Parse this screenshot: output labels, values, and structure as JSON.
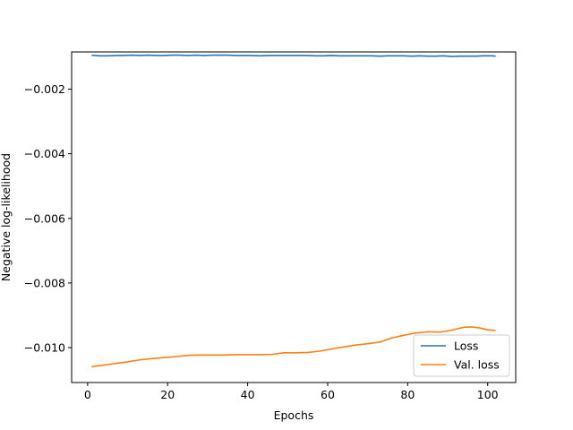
{
  "chart_data": {
    "type": "line",
    "title": "",
    "xlabel": "Epochs",
    "ylabel": "Negative log-likelihood",
    "xlim": [
      -4,
      107
    ],
    "ylim": [
      -0.01108,
      -0.00085
    ],
    "xticks": [
      0,
      20,
      40,
      60,
      80,
      100
    ],
    "xtick_labels": [
      "0",
      "20",
      "40",
      "60",
      "80",
      "100"
    ],
    "yticks": [
      -0.01,
      -0.008,
      -0.006,
      -0.004,
      -0.002
    ],
    "ytick_labels": [
      "−0.010",
      "−0.008",
      "−0.006",
      "−0.004",
      "−0.002"
    ],
    "grid": false,
    "legend_position": "lower-right",
    "series": [
      {
        "name": "Loss",
        "color": "#1f77b4",
        "x": [
          1,
          3,
          5,
          7,
          9,
          11,
          13,
          15,
          17,
          19,
          21,
          23,
          25,
          27,
          29,
          31,
          33,
          35,
          37,
          39,
          41,
          43,
          45,
          47,
          49,
          51,
          53,
          55,
          57,
          59,
          61,
          63,
          65,
          67,
          69,
          71,
          73,
          75,
          77,
          79,
          81,
          83,
          85,
          87,
          89,
          91,
          93,
          95,
          97,
          99,
          101,
          102
        ],
        "y": [
          -0.00095,
          -0.00097,
          -0.00097,
          -0.00096,
          -0.00096,
          -0.00095,
          -0.00096,
          -0.00095,
          -0.00096,
          -0.00096,
          -0.00095,
          -0.00095,
          -0.00096,
          -0.00095,
          -0.00096,
          -0.00095,
          -0.00095,
          -0.00095,
          -0.00096,
          -0.00096,
          -0.00096,
          -0.00097,
          -0.00096,
          -0.00096,
          -0.00096,
          -0.00096,
          -0.00096,
          -0.00096,
          -0.00097,
          -0.00097,
          -0.00096,
          -0.00097,
          -0.00097,
          -0.00097,
          -0.00097,
          -0.00097,
          -0.00098,
          -0.00097,
          -0.00097,
          -0.00097,
          -0.00098,
          -0.00097,
          -0.00098,
          -0.00098,
          -0.00097,
          -0.00099,
          -0.00098,
          -0.00098,
          -0.00098,
          -0.00097,
          -0.00097,
          -0.00098
        ]
      },
      {
        "name": "Val. loss",
        "color": "#ff7f0e",
        "x": [
          1,
          4,
          7,
          10,
          13,
          16,
          19,
          22,
          25,
          28,
          31,
          34,
          37,
          40,
          43,
          46,
          49,
          52,
          55,
          58,
          61,
          64,
          67,
          70,
          73,
          76,
          79,
          82,
          85,
          88,
          91,
          94,
          96,
          98,
          100,
          102
        ],
        "y": [
          -0.01059,
          -0.01054,
          -0.01049,
          -0.01044,
          -0.01038,
          -0.01034,
          -0.01031,
          -0.01028,
          -0.01024,
          -0.01023,
          -0.01023,
          -0.01023,
          -0.01022,
          -0.01022,
          -0.01022,
          -0.01021,
          -0.01016,
          -0.01016,
          -0.01015,
          -0.01011,
          -0.01004,
          -0.00998,
          -0.00992,
          -0.00988,
          -0.00983,
          -0.0097,
          -0.00962,
          -0.00955,
          -0.00951,
          -0.00952,
          -0.00946,
          -0.00937,
          -0.00936,
          -0.00939,
          -0.00945,
          -0.00947
        ]
      }
    ]
  }
}
